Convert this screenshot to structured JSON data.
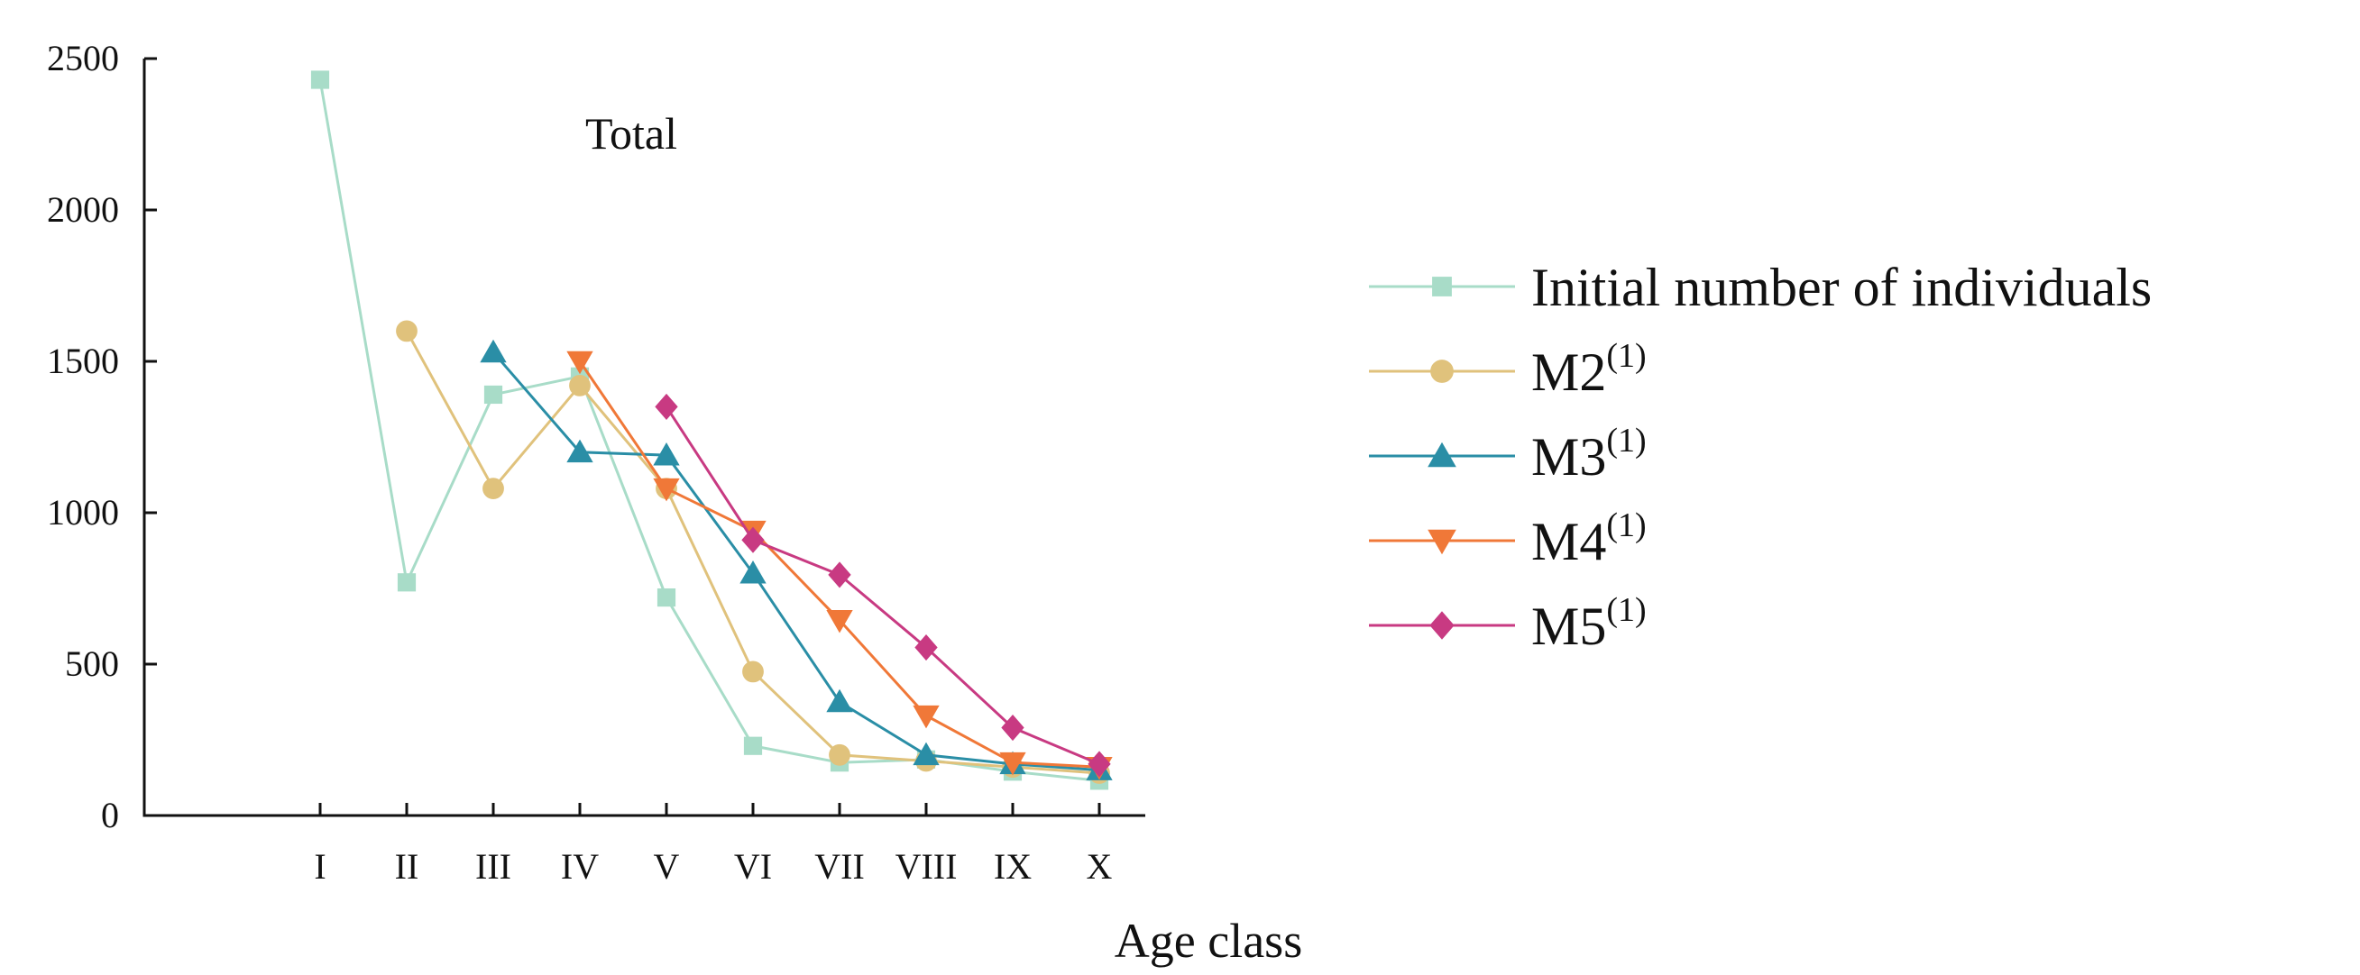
{
  "chart_data": {
    "type": "line",
    "title": "Total",
    "xlabel": "Age class",
    "ylabel": "",
    "categories": [
      "I",
      "II",
      "III",
      "IV",
      "V",
      "VI",
      "VII",
      "VIII",
      "IX",
      "X"
    ],
    "ylim": [
      0,
      2500
    ],
    "yticks": [
      0,
      500,
      1000,
      1500,
      2000,
      2500
    ],
    "grid": false,
    "legend_position": "right",
    "series": [
      {
        "name": "Initial number of individuals",
        "name_sup": "",
        "color": "#a8dcc8",
        "marker": "square",
        "values": [
          2430,
          770,
          1390,
          1450,
          720,
          230,
          175,
          185,
          145,
          115
        ]
      },
      {
        "name": "M2",
        "name_sup": "(1)",
        "color": "#e0c27c",
        "marker": "circle",
        "values": [
          null,
          1600,
          1080,
          1420,
          1080,
          475,
          200,
          180,
          160,
          140
        ]
      },
      {
        "name": "M3",
        "name_sup": "(1)",
        "color": "#2a8ea6",
        "marker": "triangle-up",
        "values": [
          null,
          null,
          1530,
          1200,
          1190,
          800,
          375,
          200,
          170,
          150
        ]
      },
      {
        "name": "M4",
        "name_sup": "(1)",
        "color": "#f07838",
        "marker": "triangle-down",
        "values": [
          null,
          null,
          null,
          1500,
          1080,
          940,
          645,
          330,
          175,
          160
        ]
      },
      {
        "name": "M5",
        "name_sup": "(1)",
        "color": "#c83a82",
        "marker": "diamond",
        "values": [
          null,
          null,
          null,
          null,
          1350,
          910,
          795,
          555,
          290,
          170
        ]
      }
    ]
  }
}
